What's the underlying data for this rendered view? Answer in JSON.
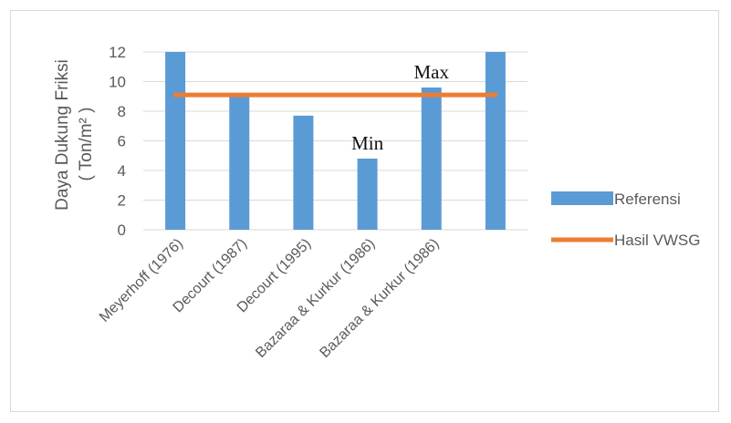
{
  "chart_data": {
    "type": "bar",
    "categories": [
      "Meyerhoff (1976)",
      "Decourt (1987)",
      "Decourt (1995)",
      "Bazaraa & Kurkur (1986)",
      "Bazaraa & Kurkur (1986)",
      ""
    ],
    "series": [
      {
        "name": "Referensi",
        "type": "bar",
        "values": [
          12,
          9.1,
          7.7,
          4.8,
          9.6,
          12
        ],
        "color": "#5b9bd5"
      },
      {
        "name": "Hasil VWSG",
        "type": "line",
        "values": [
          9.1,
          9.1,
          9.1,
          9.1,
          9.1,
          9.1
        ],
        "color": "#ed7d31"
      }
    ],
    "ylabel_line1": "Daya Dukung Friksi",
    "ylabel_line2": "( Ton/m² )",
    "ylim": [
      0,
      12
    ],
    "yticks": [
      0,
      2,
      4,
      6,
      8,
      10,
      12
    ],
    "grid": true,
    "legend": "right",
    "annotations": [
      {
        "text": "Min",
        "category_index": 3,
        "value": 4.8
      },
      {
        "text": "Max",
        "category_index": 4,
        "value": 9.6
      }
    ]
  }
}
